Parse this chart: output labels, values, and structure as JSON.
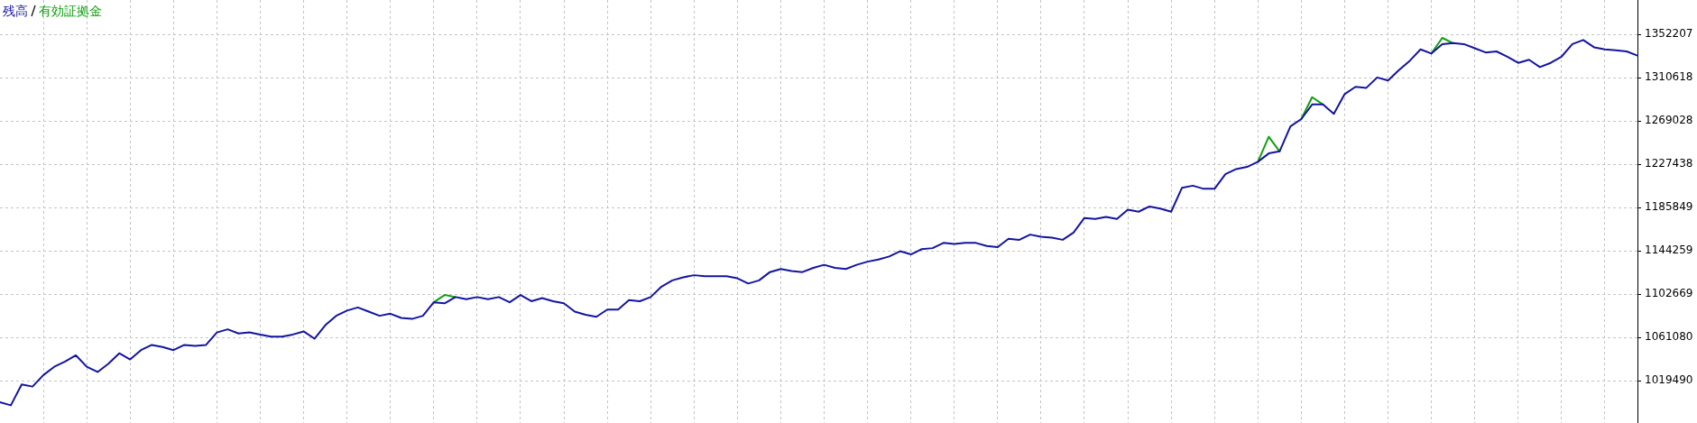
{
  "chart_data": {
    "type": "line",
    "categories": [
      null,
      null,
      null,
      null,
      null,
      null,
      null,
      null,
      null,
      null,
      null,
      null,
      null,
      null,
      null,
      null,
      null,
      null,
      null,
      null,
      null,
      null,
      null,
      null,
      null,
      null,
      null,
      null,
      null,
      null,
      null,
      null,
      null,
      null,
      null,
      null,
      null,
      null,
      null,
      null,
      null,
      null,
      null,
      null,
      null,
      null,
      null,
      null,
      null,
      null,
      null,
      null,
      null,
      null,
      null,
      null,
      null,
      null,
      null,
      null,
      null,
      null,
      null,
      null,
      null,
      null,
      null,
      null,
      null,
      null,
      null,
      null,
      null,
      null,
      null,
      null,
      null,
      null,
      null,
      null,
      null,
      null,
      null,
      null,
      null,
      null,
      null,
      null,
      null,
      null,
      null,
      null,
      null,
      null,
      null,
      null,
      null,
      null,
      null,
      null,
      null,
      null,
      null,
      null,
      null,
      null,
      null,
      null,
      null,
      null,
      null,
      null,
      null,
      null,
      null,
      null,
      null,
      null,
      null,
      null,
      null,
      null,
      null,
      null,
      null,
      null,
      null,
      null,
      null,
      null,
      null,
      null,
      null,
      null,
      null,
      null,
      null,
      null,
      null,
      null,
      null,
      null,
      null,
      null,
      null,
      null,
      null,
      null,
      null,
      null,
      null,
      null
    ],
    "series": [
      {
        "name": "残高",
        "color": "#1414a0",
        "values": [
          999000,
          996000,
          1016000,
          1014000,
          1025000,
          1033000,
          1038000,
          1044000,
          1033000,
          1028000,
          1036000,
          1046000,
          1040000,
          1049000,
          1054000,
          1052000,
          1049000,
          1054000,
          1053000,
          1054000,
          1066000,
          1069000,
          1065000,
          1066000,
          1064000,
          1062000,
          1062000,
          1064000,
          1067000,
          1060000,
          1073000,
          1082000,
          1087000,
          1090000,
          1086000,
          1082000,
          1084000,
          1080000,
          1079000,
          1082000,
          1095000,
          1094000,
          1100000,
          1098000,
          1100000,
          1098000,
          1100000,
          1095000,
          1102000,
          1096000,
          1099000,
          1096000,
          1094000,
          1086000,
          1083000,
          1081000,
          1088000,
          1088000,
          1097000,
          1096000,
          1100000,
          1110000,
          1116000,
          1119000,
          1121000,
          1120000,
          1120000,
          1120000,
          1118000,
          1113000,
          1116000,
          1124000,
          1127000,
          1125000,
          1124000,
          1128000,
          1131000,
          1128000,
          1127000,
          1131000,
          1134000,
          1136000,
          1139000,
          1144000,
          1141000,
          1146000,
          1147000,
          1152000,
          1151000,
          1152000,
          1152000,
          1149000,
          1148000,
          1156000,
          1155000,
          1160000,
          1158000,
          1157000,
          1155000,
          1162000,
          1176000,
          1175000,
          1177000,
          1175000,
          1184000,
          1182000,
          1187000,
          1185000,
          1182000,
          1205000,
          1207000,
          1204000,
          1204000,
          1218000,
          1223000,
          1225000,
          1230000,
          1238000,
          1240000,
          1264000,
          1271000,
          1285000,
          1285000,
          1276000,
          1295000,
          1302000,
          1301000,
          1311000,
          1308000,
          1318000,
          1327000,
          1338000,
          1334000,
          1343000,
          1344000,
          1343000,
          1339000,
          1335000,
          1336000,
          1331000,
          1325000,
          1328000,
          1321000,
          1325000,
          1331000,
          1343000,
          1347000,
          1340000,
          1338000,
          1337000,
          1336000,
          1332000
        ]
      },
      {
        "name": "有効証拠金",
        "color": "#10a010",
        "values": [
          null,
          null,
          null,
          null,
          null,
          null,
          null,
          null,
          null,
          null,
          null,
          null,
          null,
          null,
          null,
          null,
          null,
          null,
          null,
          null,
          null,
          null,
          null,
          null,
          null,
          null,
          null,
          null,
          null,
          null,
          null,
          null,
          null,
          null,
          null,
          null,
          null,
          null,
          null,
          null,
          1095000,
          1102000,
          1100000,
          null,
          null,
          null,
          null,
          null,
          null,
          null,
          null,
          null,
          null,
          null,
          null,
          null,
          null,
          null,
          null,
          null,
          null,
          null,
          null,
          null,
          null,
          null,
          null,
          null,
          null,
          null,
          null,
          null,
          null,
          null,
          null,
          null,
          null,
          null,
          null,
          null,
          null,
          null,
          null,
          null,
          null,
          null,
          null,
          null,
          null,
          null,
          null,
          null,
          null,
          null,
          null,
          null,
          null,
          null,
          null,
          null,
          null,
          null,
          null,
          null,
          null,
          null,
          null,
          null,
          null,
          null,
          null,
          null,
          null,
          null,
          null,
          null,
          1230000,
          1254000,
          1240000,
          null,
          1271000,
          1292000,
          1285000,
          null,
          null,
          null,
          null,
          null,
          null,
          null,
          null,
          null,
          1334000,
          1349000,
          1344000,
          null,
          null,
          null,
          null,
          null,
          null,
          null,
          null,
          null,
          null,
          null,
          null,
          null,
          null,
          null,
          null,
          null
        ]
      }
    ],
    "ylim": [
      979000,
      1385400
    ],
    "yticks": [
      1019490,
      1061080,
      1102669,
      1144259,
      1185849,
      1227438,
      1269028,
      1310618,
      1352207
    ],
    "grid": true,
    "legend": "top left",
    "tick_labels": "y"
  }
}
